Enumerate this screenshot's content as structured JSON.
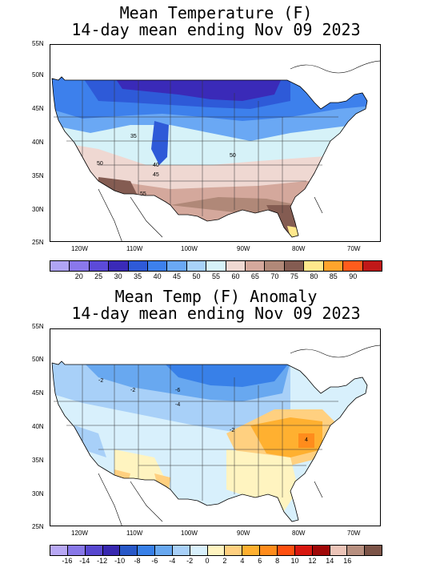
{
  "map1": {
    "title_line1": "Mean Temperature (F)",
    "title_line2": "14-day mean ending Nov 09 2023",
    "lat_labels": [
      "55N",
      "50N",
      "45N",
      "40N",
      "35N",
      "30N",
      "25N"
    ],
    "lon_labels": [
      "120W",
      "110W",
      "100W",
      "90W",
      "80W",
      "70W"
    ],
    "contour_labels": [
      "35",
      "40",
      "45",
      "50",
      "55",
      "50"
    ],
    "colorbar_colors": [
      "#b0a4f4",
      "#8a78ec",
      "#5c4ad8",
      "#3a2ab8",
      "#2e5ad8",
      "#3d80ec",
      "#6aa8f4",
      "#a8d2f8",
      "#d6f2f8",
      "#efd8d2",
      "#d4a89c",
      "#b08878",
      "#845c52",
      "#ffe88c",
      "#ffa42c",
      "#ff5c1c",
      "#c01818"
    ],
    "colorbar_labels": [
      "20",
      "25",
      "30",
      "35",
      "40",
      "45",
      "50",
      "55",
      "60",
      "65",
      "70",
      "75",
      "80",
      "85",
      "90"
    ]
  },
  "map2": {
    "title_line1": "Mean Temp (F) Anomaly",
    "title_line2": "14-day mean ending Nov 09 2023",
    "lat_labels": [
      "55N",
      "50N",
      "45N",
      "40N",
      "35N",
      "30N",
      "25N"
    ],
    "lon_labels": [
      "120W",
      "110W",
      "100W",
      "90W",
      "80W",
      "70W"
    ],
    "contour_labels": [
      "-2",
      "-2",
      "-6",
      "-4",
      "-2",
      "4"
    ],
    "colorbar_colors": [
      "#b8a8f4",
      "#8878e8",
      "#5848d0",
      "#3828b0",
      "#2858c8",
      "#3880e8",
      "#68a8f0",
      "#a8d0f8",
      "#d8f0fc",
      "#fff4c0",
      "#ffd080",
      "#ffb030",
      "#ff8c1c",
      "#ff5010",
      "#d81810",
      "#a00808",
      "#ecc4b8",
      "#b89080",
      "#7c5448"
    ],
    "colorbar_labels": [
      "-16",
      "-14",
      "-12",
      "-10",
      "-8",
      "-6",
      "-4",
      "-2",
      "0",
      "2",
      "4",
      "6",
      "8",
      "10",
      "12",
      "14",
      "16"
    ]
  }
}
